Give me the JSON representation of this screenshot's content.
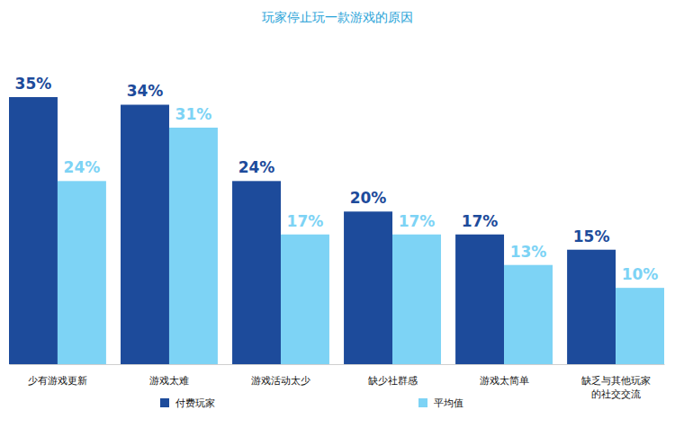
{
  "chart_data": {
    "type": "bar",
    "title": "玩家停止玩一款游戏的原因",
    "categories": [
      "少有游戏更新",
      "游戏太难",
      "游戏活动太少",
      "缺少社群感",
      "游戏太简单",
      "缺乏与其他玩家\n的社交交流"
    ],
    "series": [
      {
        "name": "付费玩家",
        "color": "#1d4b9b",
        "values": [
          35,
          34,
          24,
          20,
          17,
          15
        ],
        "value_labels": [
          "35%",
          "34%",
          "24%",
          "20%",
          "17%",
          "15%"
        ]
      },
      {
        "name": "平均值",
        "color": "#7dd3f5",
        "values": [
          24,
          31,
          17,
          17,
          13,
          10
        ],
        "value_labels": [
          "24%",
          "31%",
          "17%",
          "17%",
          "13%",
          "10%"
        ]
      }
    ],
    "ylim": [
      0,
      35
    ],
    "grid": false,
    "tick_labels": "x",
    "data_labels": true,
    "legend": "bottom"
  }
}
